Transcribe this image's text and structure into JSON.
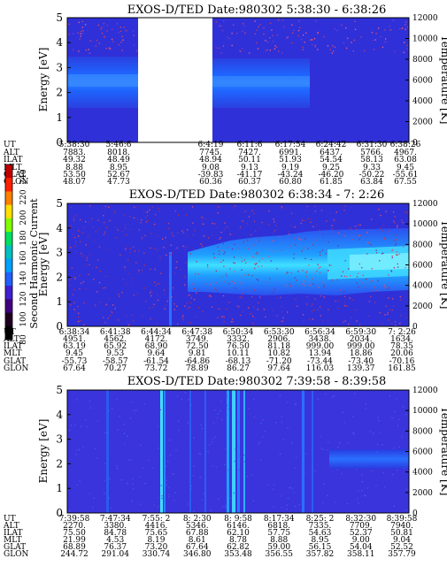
{
  "colorbar": {
    "label": "Second Harmonic Current",
    "ticks": [
      "240",
      "220",
      "200",
      "180",
      "160",
      "140",
      "120",
      "100",
      "80"
    ],
    "colors": [
      "#c00000",
      "#ff2000",
      "#ff8000",
      "#ffe000",
      "#80ff00",
      "#00e060",
      "#00c0c0",
      "#00a0ff",
      "#2060ff",
      "#4020d0",
      "#400080",
      "#200020",
      "#000000"
    ]
  },
  "chart_data": [
    {
      "type": "heatmap",
      "title": "EXOS-D/TED   Date:980302  5:38:30 - 6:38:26",
      "ylabel": "Energy [eV]",
      "y2label": "Temperature [K]",
      "ylim": [
        0,
        5
      ],
      "y_ticks": [
        "0",
        "1",
        "2",
        "3",
        "4",
        "5"
      ],
      "y2lim": [
        0,
        12000
      ],
      "y2_ticks": [
        "0",
        "2000",
        "4000",
        "6000",
        "8000",
        "10000",
        "12000"
      ],
      "data_gap": [
        "5:46:6",
        "6:4:19"
      ],
      "rows": [
        {
          "label": "UT",
          "values": [
            "5:38:30",
            "5:46:6",
            "6:4:19",
            "6:11:6",
            "6:17:54",
            "6:24:42",
            "6:31:30",
            "6:38:26"
          ]
        },
        {
          "label": "ALT",
          "values": [
            "7883.",
            "8018.",
            "7745.",
            "7427.",
            "6991.",
            "6437.",
            "5766.",
            "4967."
          ]
        },
        {
          "label": "ILAT",
          "values": [
            "49.32",
            "48.49",
            "48.94",
            "50.11",
            "51.93",
            "54.54",
            "58.13",
            "63.08"
          ]
        },
        {
          "label": "MLT",
          "values": [
            "8.88",
            "8.95",
            "9.08",
            "9.13",
            "9.19",
            "9.25",
            "9.33",
            "9.45"
          ]
        },
        {
          "label": "GLAT",
          "values": [
            "53.50",
            "52.67",
            "-39.83",
            "-41.17",
            "-43.24",
            "-46.20",
            "-50.22",
            "-55.61"
          ]
        },
        {
          "label": "GLON",
          "values": [
            "48.07",
            "47.73",
            "60.36",
            "60.37",
            "60.80",
            "61.85",
            "63.84",
            "67.55"
          ]
        }
      ]
    },
    {
      "type": "heatmap",
      "title": "EXOS-D/TED   Date:980302  6:38:34 - 7: 2:26",
      "ylabel": "Energy [eV]",
      "y2label": "Temperature [K]",
      "ylim": [
        0,
        5
      ],
      "y_ticks": [
        "0",
        "1",
        "2",
        "3",
        "4",
        "5"
      ],
      "y2lim": [
        0,
        12000
      ],
      "y2_ticks": [
        "0",
        "2000",
        "4000",
        "6000",
        "8000",
        "10000",
        "12000"
      ],
      "rows": [
        {
          "label": "UT",
          "values": [
            "6:38:34",
            "6:41:38",
            "6:44:34",
            "6:47:38",
            "6:50:34",
            "6:53:30",
            "6:56:34",
            "6:59:30",
            "7: 2:26"
          ]
        },
        {
          "label": "ALT",
          "values": [
            "4951.",
            "4562.",
            "4172.",
            "3749.",
            "3332.",
            "2906.",
            "3438.",
            "2034.",
            "1634."
          ]
        },
        {
          "label": "ILAT",
          "values": [
            "63.19",
            "65.92",
            "68.90",
            "72.50",
            "76.50",
            "81.18",
            "999.00",
            "999.00",
            "78.35"
          ]
        },
        {
          "label": "MLT",
          "values": [
            "9.45",
            "9.53",
            "9.64",
            "9.81",
            "10.11",
            "10.82",
            "13.94",
            "18.86",
            "20.06"
          ]
        },
        {
          "label": "GLAT",
          "values": [
            "-55.73",
            "-58.57",
            "-61.54",
            "-64.86",
            "-68.13",
            "-71.20",
            "-73.44",
            "-73.40",
            "-70.16"
          ]
        },
        {
          "label": "GLON",
          "values": [
            "67.64",
            "70.27",
            "73.72",
            "78.89",
            "86.27",
            "97.64",
            "116.03",
            "139.37",
            "161.85"
          ]
        }
      ]
    },
    {
      "type": "heatmap",
      "title": "EXOS-D/TED   Date:980302  7:39:58 - 8:39:58",
      "ylabel": "Energy [eV]",
      "y2label": "Temperature [K]",
      "ylim": [
        0,
        5
      ],
      "y_ticks": [
        "0",
        "1",
        "2",
        "3",
        "4",
        "5"
      ],
      "y2lim": [
        0,
        12000
      ],
      "y2_ticks": [
        "0",
        "2000",
        "4000",
        "6000",
        "8000",
        "10000",
        "12000"
      ],
      "rows": [
        {
          "label": "UT",
          "values": [
            "7:39:58",
            "7:47:34",
            "7:55: 2",
            "8: 2:30",
            "8: 9:58",
            "8:17:34",
            "8:25: 2",
            "8:32:30",
            "8:39:58"
          ]
        },
        {
          "label": "ALT",
          "values": [
            "2270.",
            "3380.",
            "4416.",
            "5346.",
            "6146.",
            "6818.",
            "7335.",
            "7709.",
            "7940."
          ]
        },
        {
          "label": "ILAT",
          "values": [
            "75.50",
            "84.78",
            "75.65",
            "67.88",
            "62.10",
            "57.75",
            "54.63",
            "52.37",
            "50.81"
          ]
        },
        {
          "label": "MLT",
          "values": [
            "21.99",
            "4.53",
            "8.19",
            "8.61",
            "8.78",
            "8.88",
            "8.95",
            "9.00",
            "9.04"
          ]
        },
        {
          "label": "GLAT",
          "values": [
            "68.89",
            "76.37",
            "73.20",
            "67.64",
            "62.82",
            "59.00",
            "56.15",
            "54.04",
            "52.52"
          ]
        },
        {
          "label": "GLON",
          "values": [
            "244.72",
            "291.04",
            "330.74",
            "346.80",
            "353.48",
            "356.55",
            "357.82",
            "358.11",
            "357.79"
          ]
        }
      ]
    }
  ]
}
